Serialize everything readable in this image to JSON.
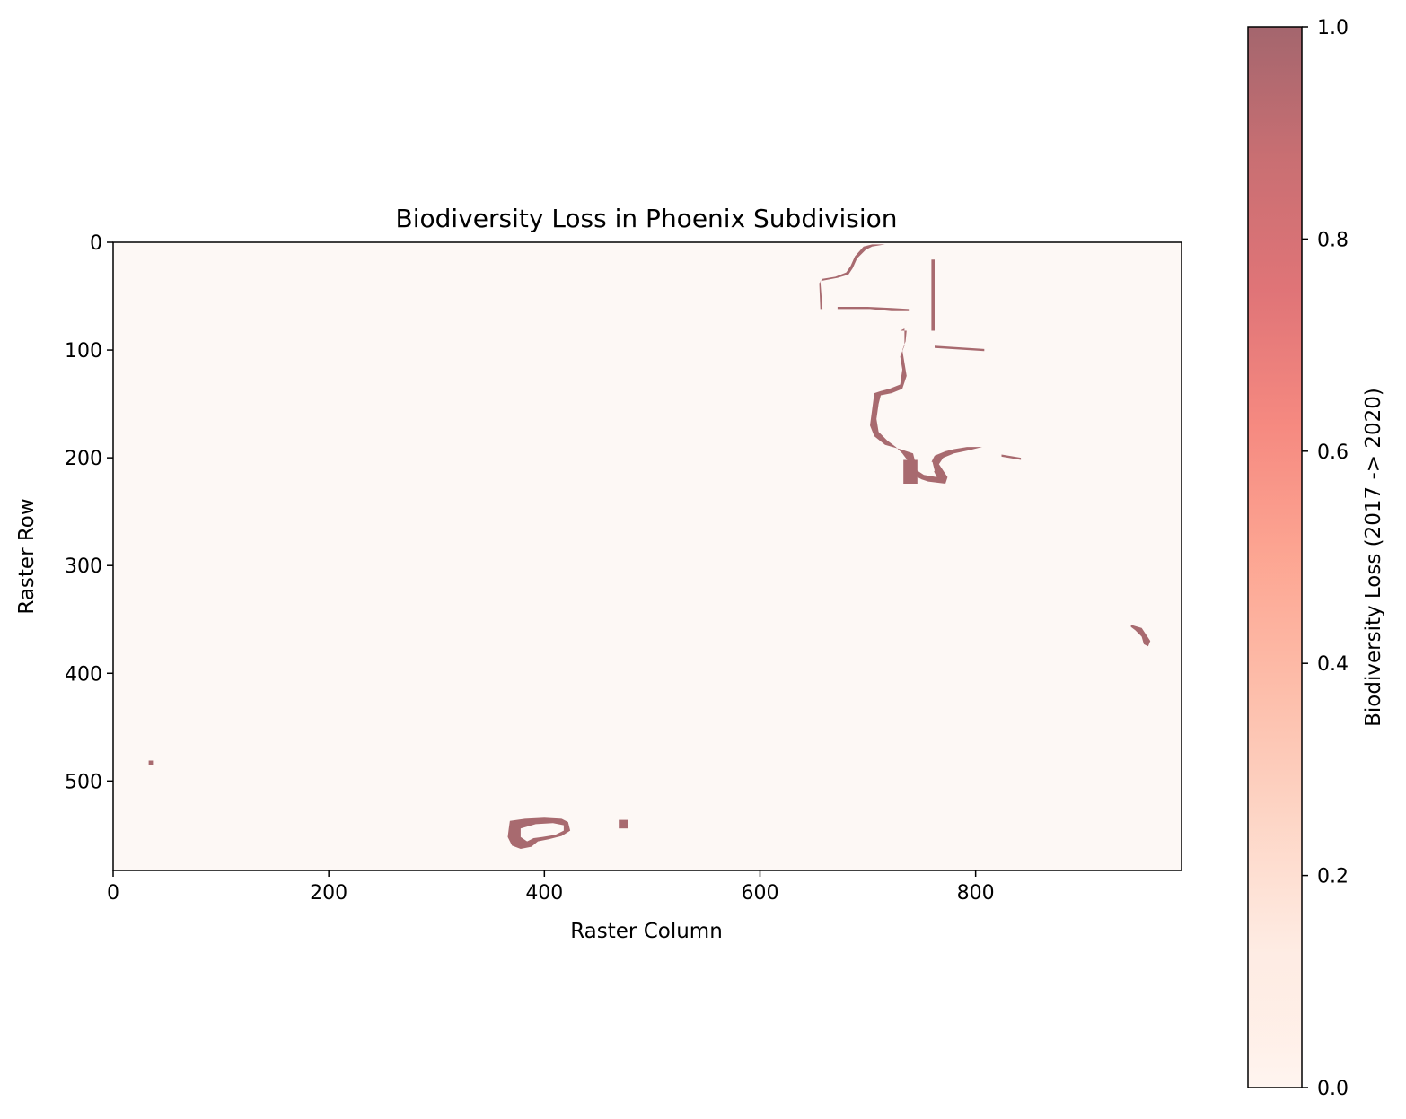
{
  "chart_data": {
    "type": "heatmap",
    "title": "Biodiversity Loss in Phoenix Subdivision",
    "xlabel": "Raster Column",
    "ylabel": "Raster Row",
    "xlim": [
      0,
      991
    ],
    "ylim": [
      583,
      0
    ],
    "x_ticks": [
      {
        "value": 0,
        "label": "0"
      },
      {
        "value": 200,
        "label": "200"
      },
      {
        "value": 400,
        "label": "400"
      },
      {
        "value": 600,
        "label": "600"
      },
      {
        "value": 800,
        "label": "800"
      }
    ],
    "y_ticks": [
      {
        "value": 0,
        "label": "0"
      },
      {
        "value": 100,
        "label": "100"
      },
      {
        "value": 200,
        "label": "200"
      },
      {
        "value": 300,
        "label": "300"
      },
      {
        "value": 400,
        "label": "400"
      },
      {
        "value": 500,
        "label": "500"
      }
    ],
    "colormap": "Reds",
    "alpha": 0.6,
    "background_value": 0,
    "background_color": "#fdf8f5",
    "loss_color": "#a86a6f",
    "colorbar": {
      "label": "Biodiversity Loss (2017 -> 2020)",
      "range": [
        0,
        1
      ],
      "ticks": [
        {
          "value": 0.0,
          "label": "0.0"
        },
        {
          "value": 0.2,
          "label": "0.2"
        },
        {
          "value": 0.4,
          "label": "0.4"
        },
        {
          "value": 0.6,
          "label": "0.6"
        },
        {
          "value": 0.8,
          "label": "0.8"
        },
        {
          "value": 1.0,
          "label": "1.0"
        }
      ],
      "stops": [
        {
          "value": 0.0,
          "color": "#fff5f0"
        },
        {
          "value": 0.125,
          "color": "#fee0d2"
        },
        {
          "value": 0.25,
          "color": "#fcbba1"
        },
        {
          "value": 0.375,
          "color": "#fc9272"
        },
        {
          "value": 0.5,
          "color": "#fb6a4a"
        },
        {
          "value": 0.625,
          "color": "#ef3b2c"
        },
        {
          "value": 0.75,
          "color": "#cb181d"
        },
        {
          "value": 0.875,
          "color": "#a50f15"
        },
        {
          "value": 1.0,
          "color": "#67000d"
        }
      ]
    },
    "loss_regions": [
      {
        "name": "north-fragment-upper",
        "value": 1,
        "polygon": [
          [
            656,
            36
          ],
          [
            672,
            33
          ],
          [
            682,
            30
          ],
          [
            686,
            24
          ],
          [
            690,
            15
          ],
          [
            698,
            7
          ],
          [
            704,
            4
          ],
          [
            716,
            2
          ],
          [
            704,
            2
          ],
          [
            696,
            4
          ],
          [
            688,
            13
          ],
          [
            684,
            22
          ],
          [
            680,
            28
          ],
          [
            670,
            32
          ],
          [
            658,
            34
          ],
          [
            655,
            38
          ],
          [
            656,
            62
          ],
          [
            658,
            62
          ]
        ]
      },
      {
        "name": "north-fragment-line",
        "value": 1,
        "polygon": [
          [
            672,
            62
          ],
          [
            702,
            62
          ],
          [
            722,
            64
          ],
          [
            738,
            64
          ],
          [
            738,
            62
          ],
          [
            722,
            61
          ],
          [
            700,
            60
          ],
          [
            672,
            60
          ]
        ]
      },
      {
        "name": "north-vertical-strip",
        "value": 1,
        "polygon": [
          [
            759,
            16
          ],
          [
            762,
            16
          ],
          [
            762,
            82
          ],
          [
            759,
            82
          ]
        ]
      },
      {
        "name": "north-horizontal-strip",
        "value": 1,
        "polygon": [
          [
            762,
            96
          ],
          [
            808,
            99
          ],
          [
            808,
            101
          ],
          [
            762,
            98
          ]
        ]
      },
      {
        "name": "central-channel",
        "value": 1,
        "polygon": [
          [
            730,
            82
          ],
          [
            734,
            80
          ],
          [
            734,
            96
          ],
          [
            730,
            106
          ],
          [
            732,
            118
          ],
          [
            730,
            132
          ],
          [
            720,
            136
          ],
          [
            712,
            138
          ],
          [
            706,
            140
          ],
          [
            704,
            155
          ],
          [
            702,
            170
          ],
          [
            706,
            180
          ],
          [
            716,
            188
          ],
          [
            730,
            192
          ],
          [
            742,
            196
          ],
          [
            744,
            204
          ],
          [
            742,
            216
          ],
          [
            750,
            220
          ],
          [
            756,
            222
          ],
          [
            772,
            224
          ],
          [
            774,
            218
          ],
          [
            770,
            212
          ],
          [
            766,
            206
          ],
          [
            770,
            200
          ],
          [
            780,
            196
          ],
          [
            794,
            193
          ],
          [
            806,
            190
          ],
          [
            792,
            190
          ],
          [
            780,
            192
          ],
          [
            772,
            194
          ],
          [
            762,
            198
          ],
          [
            758,
            206
          ],
          [
            762,
            214
          ],
          [
            764,
            218
          ],
          [
            752,
            216
          ],
          [
            746,
            212
          ],
          [
            738,
            204
          ],
          [
            732,
            196
          ],
          [
            726,
            190
          ],
          [
            718,
            184
          ],
          [
            710,
            176
          ],
          [
            708,
            164
          ],
          [
            710,
            150
          ],
          [
            712,
            142
          ],
          [
            722,
            140
          ],
          [
            732,
            136
          ],
          [
            736,
            124
          ],
          [
            734,
            112
          ],
          [
            732,
            100
          ],
          [
            735,
            92
          ],
          [
            736,
            82
          ]
        ]
      },
      {
        "name": "central-block",
        "value": 1,
        "polygon": [
          [
            733,
            202
          ],
          [
            746,
            202
          ],
          [
            746,
            224
          ],
          [
            733,
            224
          ]
        ]
      },
      {
        "name": "east-strip",
        "value": 1,
        "polygon": [
          [
            824,
            197
          ],
          [
            842,
            200
          ],
          [
            842,
            202
          ],
          [
            824,
            199
          ]
        ]
      },
      {
        "name": "east-fragment",
        "value": 1,
        "polygon": [
          [
            944,
            355
          ],
          [
            954,
            358
          ],
          [
            958,
            364
          ],
          [
            962,
            370
          ],
          [
            960,
            375
          ],
          [
            956,
            373
          ],
          [
            954,
            366
          ],
          [
            948,
            360
          ],
          [
            944,
            357
          ]
        ]
      },
      {
        "name": "west-speck",
        "value": 1,
        "polygon": [
          [
            33,
            481
          ],
          [
            37,
            481
          ],
          [
            37,
            485
          ],
          [
            33,
            485
          ]
        ]
      },
      {
        "name": "south-ring",
        "value": 1,
        "polygon": [
          [
            368,
            537
          ],
          [
            382,
            535
          ],
          [
            400,
            534
          ],
          [
            416,
            535
          ],
          [
            422,
            538
          ],
          [
            424,
            546
          ],
          [
            416,
            551
          ],
          [
            404,
            554
          ],
          [
            394,
            556
          ],
          [
            388,
            561
          ],
          [
            378,
            563
          ],
          [
            370,
            560
          ],
          [
            366,
            552
          ],
          [
            367,
            544
          ]
        ]
      },
      {
        "name": "south-block",
        "value": 1,
        "polygon": [
          [
            469,
            536
          ],
          [
            478,
            536
          ],
          [
            478,
            544
          ],
          [
            469,
            544
          ]
        ]
      }
    ],
    "interior_holes": [
      {
        "name": "south-ring-hole",
        "value": 0,
        "polygon": [
          [
            378,
            544
          ],
          [
            392,
            540
          ],
          [
            408,
            539
          ],
          [
            418,
            541
          ],
          [
            418,
            546
          ],
          [
            410,
            550
          ],
          [
            398,
            552
          ],
          [
            390,
            553
          ],
          [
            384,
            556
          ],
          [
            378,
            552
          ]
        ]
      },
      {
        "name": "central-basin-hole",
        "value": 0,
        "polygon": [
          [
            748,
            206
          ],
          [
            752,
            202
          ],
          [
            760,
            204
          ],
          [
            762,
            212
          ],
          [
            758,
            217
          ],
          [
            750,
            214
          ]
        ]
      }
    ]
  }
}
